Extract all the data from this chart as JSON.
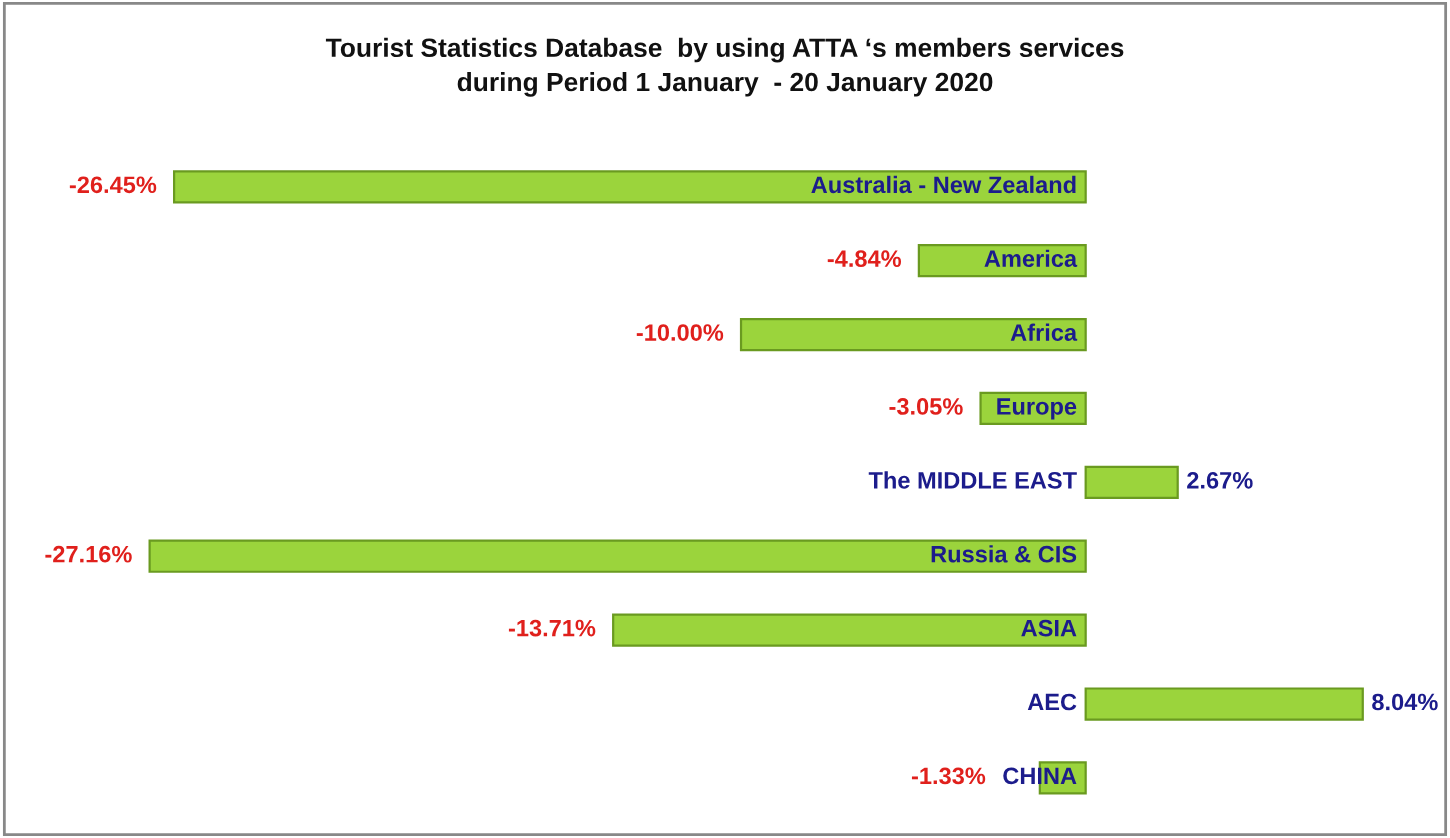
{
  "chart_data": {
    "type": "bar",
    "orientation": "horizontal",
    "title": "Tourist Statistics Database  by using ATTA ‘s members services\nduring Period 1 January  - 20 January 2020",
    "categories": [
      "Australia - New Zealand",
      "America",
      "Africa",
      "Europe",
      "The MIDDLE EAST",
      "Russia & CIS",
      "ASIA",
      "AEC",
      "CHINA"
    ],
    "values": [
      -26.45,
      -4.84,
      -10.0,
      -3.05,
      2.67,
      -27.16,
      -13.71,
      8.04,
      -1.33
    ],
    "value_labels": [
      "-26.45%",
      "-4.84%",
      "-10.00%",
      "-3.05%",
      "2.67%",
      "-27.16%",
      "-13.71%",
      "8.04%",
      "-1.33%"
    ],
    "color": "#9bd43c",
    "tick_labels": false
  }
}
